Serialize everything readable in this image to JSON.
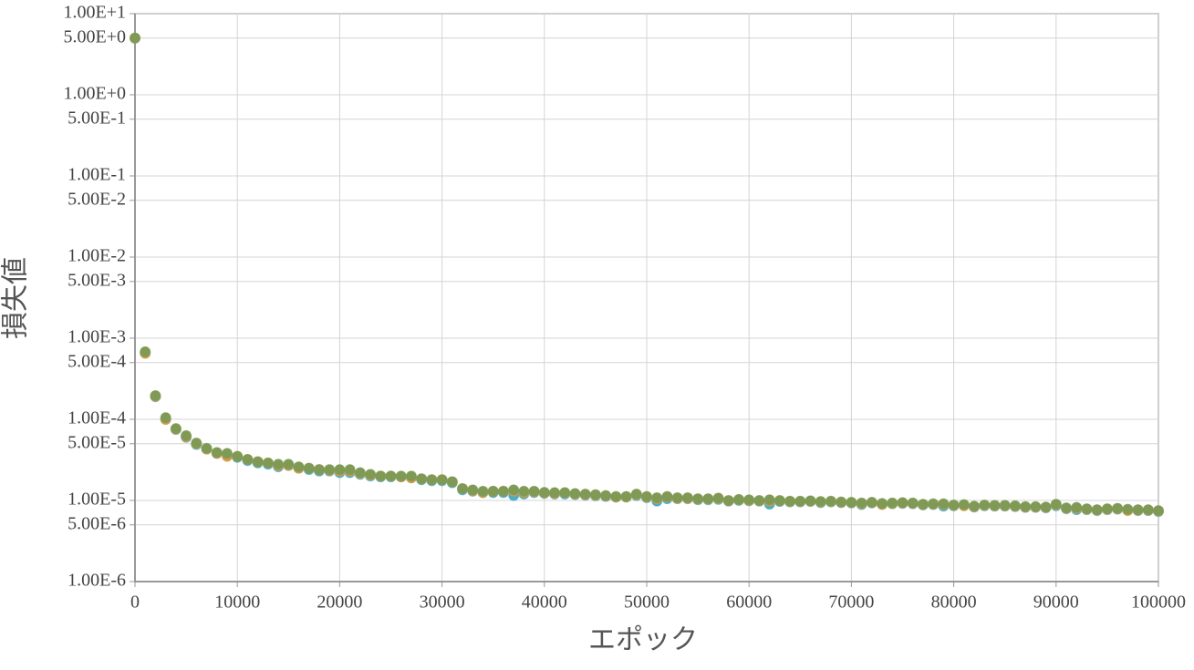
{
  "chart_data": {
    "type": "scatter",
    "x_label": "エポック",
    "y_label": "損失値",
    "yscale": "log",
    "grid": true,
    "xlim": [
      0,
      100000
    ],
    "ylim": [
      1e-06,
      10
    ],
    "xticks": [
      0,
      10000,
      20000,
      30000,
      40000,
      50000,
      60000,
      70000,
      80000,
      90000,
      100000
    ],
    "yticks": [
      {
        "value": 10,
        "label": "1.00E+1"
      },
      {
        "value": 5,
        "label": "5.00E+0"
      },
      {
        "value": 1,
        "label": "1.00E+0"
      },
      {
        "value": 0.5,
        "label": "5.00E-1"
      },
      {
        "value": 0.1,
        "label": "1.00E-1"
      },
      {
        "value": 0.05,
        "label": "5.00E-2"
      },
      {
        "value": 0.01,
        "label": "1.00E-2"
      },
      {
        "value": 0.005,
        "label": "5.00E-3"
      },
      {
        "value": 0.001,
        "label": "1.00E-3"
      },
      {
        "value": 0.0005,
        "label": "5.00E-4"
      },
      {
        "value": 0.0001,
        "label": "1.00E-4"
      },
      {
        "value": 5e-05,
        "label": "5.00E-5"
      },
      {
        "value": 1e-05,
        "label": "1.00E-5"
      },
      {
        "value": 5e-06,
        "label": "5.00E-6"
      },
      {
        "value": 1e-06,
        "label": "1.00E-6"
      }
    ],
    "x": [
      0,
      1000,
      2000,
      3000,
      4000,
      5000,
      6000,
      7000,
      8000,
      9000,
      10000,
      11000,
      12000,
      13000,
      14000,
      15000,
      16000,
      17000,
      18000,
      19000,
      20000,
      21000,
      22000,
      23000,
      24000,
      25000,
      26000,
      27000,
      28000,
      29000,
      30000,
      31000,
      32000,
      33000,
      34000,
      35000,
      36000,
      37000,
      38000,
      39000,
      40000,
      41000,
      42000,
      43000,
      44000,
      45000,
      46000,
      47000,
      48000,
      49000,
      50000,
      51000,
      52000,
      53000,
      54000,
      55000,
      56000,
      57000,
      58000,
      59000,
      60000,
      61000,
      62000,
      63000,
      64000,
      65000,
      66000,
      67000,
      68000,
      69000,
      70000,
      71000,
      72000,
      73000,
      74000,
      75000,
      76000,
      77000,
      78000,
      79000,
      80000,
      81000,
      82000,
      83000,
      84000,
      85000,
      86000,
      87000,
      88000,
      89000,
      90000,
      91000,
      92000,
      93000,
      94000,
      95000,
      96000,
      97000,
      98000,
      99000,
      100000
    ],
    "series": [
      {
        "color": "#4bacc6",
        "values": [
          5.0,
          0.00066,
          0.00019,
          0.0001,
          7.5e-05,
          6e-05,
          4.9e-05,
          4.3e-05,
          3.8e-05,
          3.6e-05,
          3.4e-05,
          3.1e-05,
          2.9e-05,
          2.8e-05,
          2.6e-05,
          2.7e-05,
          2.5e-05,
          2.4e-05,
          2.3e-05,
          2.3e-05,
          2.2e-05,
          2.2e-05,
          2.1e-05,
          2e-05,
          1.95e-05,
          1.95e-05,
          1.95e-05,
          1.9e-05,
          1.8e-05,
          1.75e-05,
          1.75e-05,
          1.65e-05,
          1.35e-05,
          1.3e-05,
          1.25e-05,
          1.25e-05,
          1.25e-05,
          1.15e-05,
          1.2e-05,
          1.25e-05,
          1.22e-05,
          1.2e-05,
          1.2e-05,
          1.18e-05,
          1.16e-05,
          1.14e-05,
          1.12e-05,
          1.1e-05,
          1.1e-05,
          1.15e-05,
          1.08e-05,
          9.8e-06,
          1.05e-05,
          1.05e-05,
          1.05e-05,
          1.02e-05,
          1.02e-05,
          1.03e-05,
          9.8e-06,
          1e-05,
          9.9e-06,
          9.8e-06,
          9e-06,
          9.7e-06,
          9.6e-06,
          9.6e-06,
          9.7e-06,
          9.4e-06,
          9.6e-06,
          9.4e-06,
          9.3e-06,
          8.9e-06,
          9.3e-06,
          9e-06,
          9.1e-06,
          9.2e-06,
          9.1e-06,
          8.8e-06,
          8.9e-06,
          8.5e-06,
          8.6e-06,
          8.7e-06,
          8.3e-06,
          8.6e-06,
          8.5e-06,
          8.5e-06,
          8.4e-06,
          8.2e-06,
          8.2e-06,
          8.1e-06,
          8.6e-06,
          7.9e-06,
          7.7e-06,
          7.7e-06,
          7.5e-06,
          7.7e-06,
          7.8e-06,
          7.6e-06,
          7.5e-06,
          7.5e-06,
          7.3e-06
        ]
      },
      {
        "color": "#d59b45",
        "values": [
          5.0,
          0.00065,
          0.000192,
          0.0001,
          7.6e-05,
          6.1e-05,
          5e-05,
          4.3e-05,
          3.8e-05,
          3.5e-05,
          3.5e-05,
          3.2e-05,
          3e-05,
          2.9e-05,
          2.7e-05,
          2.7e-05,
          2.5e-05,
          2.5e-05,
          2.4e-05,
          2.35e-05,
          2.3e-05,
          2.3e-05,
          2.15e-05,
          2.05e-05,
          2e-05,
          2e-05,
          1.95e-05,
          1.9e-05,
          1.85e-05,
          1.8e-05,
          1.8e-05,
          1.7e-05,
          1.4e-05,
          1.32e-05,
          1.25e-05,
          1.3e-05,
          1.3e-05,
          1.3e-05,
          1.25e-05,
          1.28e-05,
          1.24e-05,
          1.22e-05,
          1.24e-05,
          1.2e-05,
          1.18e-05,
          1.16e-05,
          1.14e-05,
          1.1e-05,
          1.1e-05,
          1.18e-05,
          1.1e-05,
          1.05e-05,
          1.1e-05,
          1.06e-05,
          1.06e-05,
          1.04e-05,
          1.04e-05,
          1.05e-05,
          9.9e-06,
          1.02e-05,
          1e-05,
          9.9e-06,
          9.8e-06,
          9.9e-06,
          9.7e-06,
          9.7e-06,
          9.8e-06,
          9.6e-06,
          9.7e-06,
          9.5e-06,
          9.4e-06,
          9.1e-06,
          9.4e-06,
          8.9e-06,
          9.2e-06,
          9.3e-06,
          9.2e-06,
          8.9e-06,
          9e-06,
          8.9e-06,
          8.7e-06,
          8.6e-06,
          8.4e-06,
          8.7e-06,
          8.6e-06,
          8.6e-06,
          8.5e-06,
          8.3e-06,
          8.3e-06,
          8.2e-06,
          8.8e-06,
          8e-06,
          8e-06,
          7.8e-06,
          7.6e-06,
          7.8e-06,
          7.9e-06,
          7.5e-06,
          7.6e-06,
          7.6e-06,
          7.4e-06
        ]
      },
      {
        "color": "#7f9a55",
        "values": [
          5.0,
          0.00068,
          0.000196,
          0.000105,
          7.7e-05,
          6.3e-05,
          5.1e-05,
          4.4e-05,
          3.9e-05,
          3.8e-05,
          3.5e-05,
          3.2e-05,
          3e-05,
          2.9e-05,
          2.8e-05,
          2.8e-05,
          2.6e-05,
          2.5e-05,
          2.4e-05,
          2.4e-05,
          2.4e-05,
          2.4e-05,
          2.2e-05,
          2.1e-05,
          2e-05,
          2e-05,
          2e-05,
          2e-05,
          1.85e-05,
          1.8e-05,
          1.8e-05,
          1.7e-05,
          1.4e-05,
          1.35e-05,
          1.3e-05,
          1.3e-05,
          1.3e-05,
          1.35e-05,
          1.3e-05,
          1.3e-05,
          1.26e-05,
          1.25e-05,
          1.25e-05,
          1.22e-05,
          1.2e-05,
          1.18e-05,
          1.15e-05,
          1.12e-05,
          1.12e-05,
          1.2e-05,
          1.12e-05,
          1.08e-05,
          1.12e-05,
          1.08e-05,
          1.08e-05,
          1.05e-05,
          1.05e-05,
          1.07e-05,
          1e-05,
          1.03e-05,
          1.02e-05,
          1e-05,
          1.02e-05,
          1e-05,
          9.8e-06,
          9.8e-06,
          9.9e-06,
          9.7e-06,
          9.8e-06,
          9.6e-06,
          9.5e-06,
          9.3e-06,
          9.5e-06,
          9.2e-06,
          9.3e-06,
          9.4e-06,
          9.3e-06,
          9e-06,
          9.1e-06,
          9.1e-06,
          8.8e-06,
          8.9e-06,
          8.5e-06,
          8.8e-06,
          8.7e-06,
          8.7e-06,
          8.6e-06,
          8.4e-06,
          8.4e-06,
          8.3e-06,
          9e-06,
          8.1e-06,
          8.2e-06,
          7.9e-06,
          7.7e-06,
          7.9e-06,
          8e-06,
          7.8e-06,
          7.7e-06,
          7.7e-06,
          7.5e-06
        ]
      }
    ]
  }
}
